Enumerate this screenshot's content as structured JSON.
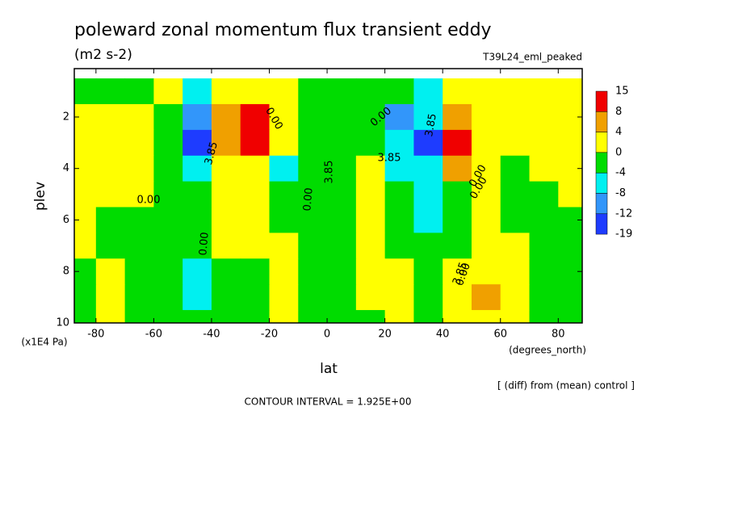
{
  "chart_data": {
    "type": "contour",
    "title": "poleward zonal momentum flux transient eddy",
    "units": "(m2 s-2)",
    "run": "T39L24_eml_peaked",
    "x_label": "lat",
    "x_unit": "(degrees_north)",
    "y_label": "plev",
    "y_unit": "(x1E4 Pa)",
    "note": "[ (diff) from (mean) control ]",
    "contour_interval": "CONTOUR INTERVAL = 1.925E+00",
    "xlim": [
      -87.5,
      88.3
    ],
    "ylim": [
      10,
      0.12
    ],
    "xticks": [
      -80,
      -60,
      -40,
      -20,
      0,
      20,
      40,
      60,
      80
    ],
    "yticks": [
      2,
      4,
      6,
      8,
      10
    ],
    "x": [
      -85,
      -75,
      -65,
      -55,
      -45,
      -35,
      -25,
      -15,
      -5,
      5,
      15,
      25,
      35,
      45,
      55,
      65,
      75,
      85
    ],
    "y": [
      1,
      2,
      3,
      4,
      5,
      6,
      7,
      8,
      9,
      10
    ],
    "z": [
      [
        -1,
        -1,
        -1,
        1,
        -6,
        2,
        3,
        1,
        -1,
        -1,
        -1,
        -2,
        -5,
        2,
        1,
        1,
        1,
        2
      ],
      [
        1,
        1,
        1,
        -2,
        -9,
        6,
        12,
        2,
        -1,
        -1,
        -3,
        -10,
        -8,
        6,
        3,
        1,
        1,
        1
      ],
      [
        1,
        1,
        1,
        -1,
        -13,
        5,
        9,
        2,
        -1,
        -1,
        -2,
        -8,
        -14,
        10,
        3,
        1,
        1,
        1
      ],
      [
        1,
        1,
        1,
        -1,
        -6,
        2,
        1,
        -5,
        -1,
        -1,
        1,
        -6,
        -7,
        4,
        1,
        -1,
        1,
        1
      ],
      [
        1,
        1,
        1,
        -1,
        -2,
        1,
        1,
        -3,
        -1,
        -1,
        2,
        -3,
        -6,
        -1,
        1,
        -1,
        -1,
        1
      ],
      [
        1,
        -1,
        -1,
        -1,
        -1,
        1,
        2,
        -1,
        -1,
        -1,
        1,
        -2,
        -5,
        -1,
        1,
        -1,
        -1,
        -1
      ],
      [
        1,
        -1,
        -1,
        -1,
        -1,
        1,
        1,
        1,
        -1,
        -1,
        1,
        -1,
        -3,
        -1,
        1,
        1,
        -1,
        -1
      ],
      [
        -1,
        1,
        -1,
        -3,
        -5,
        -1,
        -1,
        1,
        -1,
        -1,
        1,
        1,
        -1,
        1,
        3,
        1,
        -1,
        -1
      ],
      [
        -1,
        1,
        -1,
        -2,
        -6,
        -2,
        -1,
        1,
        -1,
        -1,
        1,
        1,
        -1,
        1,
        5,
        2,
        -1,
        -1
      ],
      [
        -1,
        1,
        -1,
        -1,
        -3,
        -1,
        -1,
        1,
        -1,
        -1,
        -1,
        1,
        -2,
        1,
        2,
        1,
        -1,
        -1
      ]
    ],
    "levels": [
      15,
      8,
      4,
      0,
      -4,
      -8,
      -12,
      -19
    ],
    "colors": [
      "#f00000",
      "#f0a000",
      "#ffff00",
      "#00dc00",
      "#00f0f0",
      "#3296fa",
      "#1e3cff"
    ],
    "contour_labels": [
      "0.00",
      "3.85",
      "0.00",
      "3.85",
      "0.00",
      "0.00",
      "3.85",
      "0.00",
      "3.85",
      "0.00",
      "0.00",
      "3.85",
      "0.00"
    ]
  }
}
